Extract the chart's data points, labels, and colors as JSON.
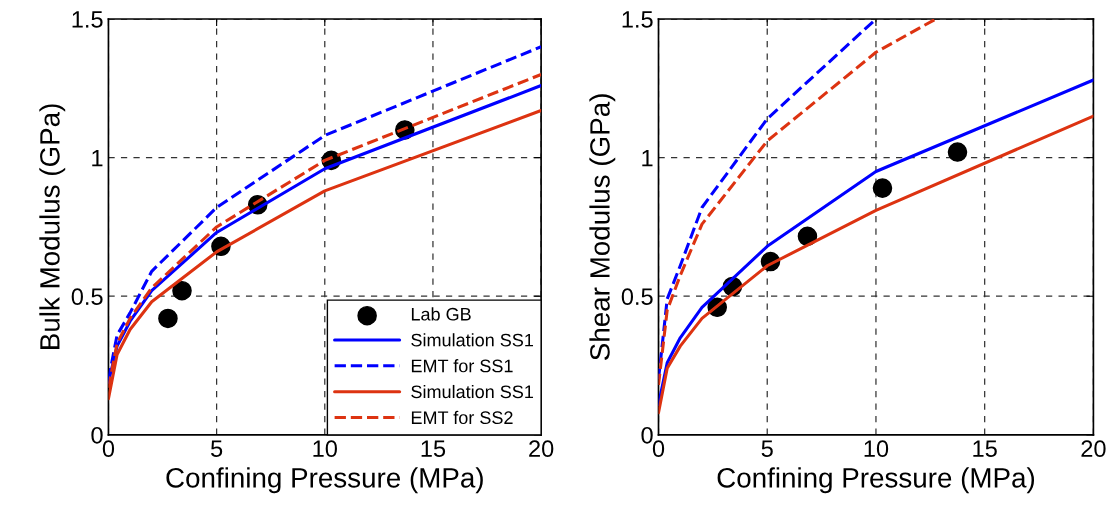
{
  "chart_data": [
    {
      "type": "line",
      "xlabel": "Confining Pressure (MPa)",
      "ylabel": "Bulk Modulus (GPa)",
      "xlim": [
        0,
        20
      ],
      "ylim": [
        0,
        1.5
      ],
      "xticks": [
        0,
        5,
        10,
        15,
        20
      ],
      "yticks": [
        0,
        0.5,
        1,
        1.5
      ],
      "grid": true,
      "legend": "bottom right",
      "series": [
        {
          "name": "Lab GB",
          "type": "scatter",
          "marker": "circle",
          "color": "#000000",
          "x": [
            2.75,
            3.4,
            5.2,
            6.9,
            10.3,
            13.7
          ],
          "values": [
            0.42,
            0.52,
            0.68,
            0.83,
            0.99,
            1.1
          ]
        },
        {
          "name": "Simulation SS1",
          "line_style": "solid",
          "color": "#0000ff",
          "x": [
            0,
            0.4,
            1,
            2,
            5,
            10,
            20
          ],
          "values": [
            0.19,
            0.32,
            0.41,
            0.52,
            0.73,
            0.96,
            1.26
          ]
        },
        {
          "name": "EMT for SS1",
          "line_style": "dashed",
          "color": "#0000ff",
          "x": [
            0,
            0.4,
            1,
            2,
            5,
            10,
            20
          ],
          "values": [
            0.2,
            0.36,
            0.44,
            0.59,
            0.82,
            1.08,
            1.4
          ]
        },
        {
          "name": "Simulation SS1",
          "line_style": "solid",
          "color": "#dd3311",
          "x": [
            0,
            0.4,
            1,
            2,
            5,
            10,
            20
          ],
          "values": [
            0.13,
            0.29,
            0.38,
            0.48,
            0.66,
            0.88,
            1.17
          ]
        },
        {
          "name": "EMT for SS2",
          "line_style": "dashed",
          "color": "#dd3311",
          "x": [
            0,
            0.4,
            1,
            2,
            5,
            10,
            20
          ],
          "values": [
            0.17,
            0.33,
            0.42,
            0.53,
            0.75,
            0.99,
            1.3
          ]
        }
      ]
    },
    {
      "type": "line",
      "xlabel": "Confining Pressure (MPa)",
      "ylabel": "Shear Modulus (GPa)",
      "xlim": [
        0,
        20
      ],
      "ylim": [
        0,
        1.5
      ],
      "xticks": [
        0,
        5,
        10,
        15,
        20
      ],
      "yticks": [
        0,
        0.5,
        1,
        1.5
      ],
      "grid": true,
      "series": [
        {
          "type": "scatter",
          "marker": "circle",
          "color": "#000000",
          "x": [
            2.7,
            3.4,
            5.15,
            6.85,
            10.3,
            13.75
          ],
          "values": [
            0.46,
            0.535,
            0.625,
            0.716,
            0.89,
            1.02
          ]
        },
        {
          "line_style": "solid",
          "color": "#0000ff",
          "x": [
            0,
            0.4,
            1,
            2,
            5,
            10,
            20
          ],
          "values": [
            0.11,
            0.26,
            0.35,
            0.46,
            0.68,
            0.95,
            1.28
          ]
        },
        {
          "line_style": "dashed",
          "color": "#0000ff",
          "x": [
            0,
            0.4,
            1,
            2,
            5,
            10
          ],
          "values": [
            0.2,
            0.49,
            0.61,
            0.82,
            1.14,
            1.5
          ]
        },
        {
          "line_style": "solid",
          "color": "#dd3311",
          "x": [
            0,
            0.4,
            1,
            2,
            5,
            10,
            20
          ],
          "values": [
            0.08,
            0.24,
            0.32,
            0.42,
            0.61,
            0.81,
            1.15
          ]
        },
        {
          "line_style": "dashed",
          "color": "#dd3311",
          "x": [
            0,
            0.4,
            1,
            2,
            5,
            10,
            12.75
          ],
          "values": [
            0.18,
            0.45,
            0.575,
            0.76,
            1.06,
            1.38,
            1.5
          ]
        }
      ]
    }
  ]
}
